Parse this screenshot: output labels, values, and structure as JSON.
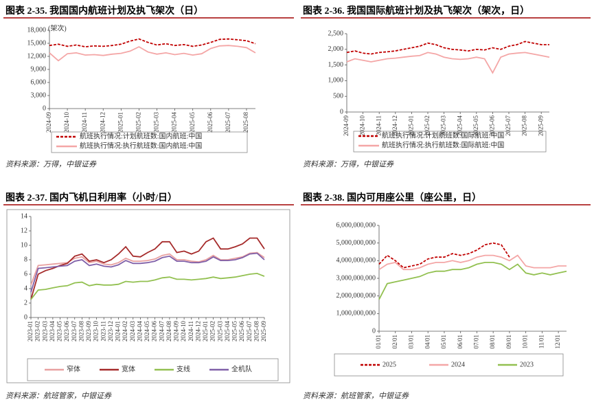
{
  "chart_data": [
    {
      "type": "line",
      "title": "图表 2-35. 我国国内航班计划及执飞架次（日）",
      "y_unit": "(架次)",
      "source": "资料来源：万得，中银证券",
      "categories": [
        "2024-09",
        null,
        "2024-10",
        null,
        "2024-11",
        null,
        "2024-12",
        null,
        "2025-01",
        null,
        "2025-02",
        null,
        "2025-03",
        null,
        "2025-04",
        null,
        "2025-05",
        null,
        "2025-06",
        null,
        "2025-07",
        null,
        "2025-08",
        null
      ],
      "ylim": [
        0,
        18000
      ],
      "yticks": [
        0,
        {
          "value": 3000,
          "label": "3,000"
        },
        {
          "value": 6000,
          "label": "6,000"
        },
        {
          "value": 9000,
          "label": "9,000"
        },
        {
          "value": 12000,
          "label": "12,000"
        },
        {
          "value": 15000,
          "label": "15,000"
        },
        {
          "value": 18000,
          "label": "18,000"
        }
      ],
      "grid": false,
      "series": [
        {
          "name": "航班执行情况:计划航班数:国内航班:中国",
          "color": "#c00000",
          "line_style": "dashed",
          "values": [
            14500,
            14800,
            14300,
            14600,
            14200,
            14400,
            14300,
            14500,
            14800,
            15500,
            16000,
            15200,
            14600,
            14900,
            14500,
            14700,
            14300,
            14600,
            15200,
            15900,
            16000,
            15800,
            15600,
            14900
          ]
        },
        {
          "name": "航班执行情况:执行航班数:国内航班:中国",
          "color": "#f4a6a6",
          "line_style": "solid",
          "values": [
            12800,
            11000,
            12600,
            12800,
            12300,
            12400,
            12200,
            12500,
            12700,
            13200,
            14200,
            13000,
            12500,
            12800,
            12400,
            12700,
            12300,
            12600,
            13800,
            14400,
            14500,
            14300,
            14000,
            12800
          ]
        }
      ]
    },
    {
      "type": "line",
      "title": "图表 2-36. 我国国际航班计划及执飞架次（架次，日）",
      "source": "资料来源：万得，中银证券",
      "categories": [
        "2024-09",
        null,
        "2024-10",
        null,
        "2024-11",
        null,
        "2024-12",
        null,
        "2025-01",
        null,
        "2025-02",
        null,
        "2025-03",
        null,
        "2025-04",
        null,
        "2025-05",
        null,
        "2025-06",
        null,
        "2025-07",
        null,
        "2025-08",
        null,
        "2025-09",
        null
      ],
      "ylim": [
        0,
        2500
      ],
      "yticks": [
        0,
        500,
        {
          "value": 1000,
          "label": "1,000"
        },
        {
          "value": 1500,
          "label": "1,500"
        },
        {
          "value": 2000,
          "label": "2,000"
        },
        {
          "value": 2500,
          "label": "2,500"
        }
      ],
      "grid": false,
      "series": [
        {
          "name": "航班执行情况:计划航班数:国际航班:中国",
          "color": "#c00000",
          "line_style": "dashed",
          "values": [
            1900,
            1950,
            1880,
            1850,
            1900,
            1920,
            1950,
            2000,
            2050,
            2100,
            2200,
            2150,
            2050,
            2000,
            1980,
            1950,
            2000,
            1980,
            2050,
            2000,
            2100,
            2150,
            2250,
            2200,
            2150,
            2150
          ]
        },
        {
          "name": "航班执行情况:执行航班数:国际航班:中国",
          "color": "#f4a6a6",
          "line_style": "solid",
          "values": [
            1600,
            1700,
            1650,
            1600,
            1650,
            1700,
            1720,
            1750,
            1780,
            1800,
            1900,
            1850,
            1750,
            1700,
            1680,
            1700,
            1750,
            1700,
            1250,
            1750,
            1850,
            1880,
            1900,
            1850,
            1800,
            1750
          ]
        }
      ]
    },
    {
      "type": "line",
      "title": "图表 2-37. 国内飞机日利用率（小时/日）",
      "source": "资料来源：航班管家，中银证券",
      "categories": [
        "2023-01",
        "2023-02",
        "2023-03",
        "2023-04",
        "2023-05",
        "2023-06",
        "2023-07",
        "2023-08",
        "2023-09",
        "2023-10",
        "2023-11",
        "2023-12",
        "2024-01",
        "2024-02",
        "2024-03",
        "2024-04",
        "2024-05",
        "2024-06",
        "2024-07",
        "2024-08",
        "2024-09",
        "2024-10",
        "2024-11",
        "2024-12",
        "2025-01",
        "2025-02",
        "2025-03",
        "2025-04",
        "2025-05",
        "2025-06",
        "2025-07",
        "2025-08",
        "2025-09"
      ],
      "ylim": [
        0,
        14
      ],
      "yticks": [
        0,
        2,
        4,
        6,
        8,
        10,
        12,
        14
      ],
      "grid": false,
      "series": [
        {
          "name": "窄体",
          "color": "#e8a0a0",
          "line_style": "solid",
          "values": [
            4.5,
            7.2,
            7.3,
            7.4,
            7.5,
            7.6,
            8.2,
            8.4,
            7.6,
            7.8,
            7.4,
            7.3,
            7.6,
            8.2,
            7.8,
            7.8,
            7.9,
            8.1,
            8.6,
            8.8,
            8.0,
            8.0,
            7.8,
            7.7,
            8.0,
            8.6,
            8.0,
            8.0,
            8.2,
            8.4,
            8.9,
            9.0,
            8.3
          ]
        },
        {
          "name": "宽体",
          "color": "#a52a2a",
          "line_style": "solid",
          "values": [
            2.5,
            6.0,
            6.5,
            6.8,
            7.2,
            7.5,
            8.5,
            8.8,
            7.8,
            8.0,
            7.6,
            8.0,
            8.8,
            9.8,
            8.5,
            8.4,
            9.0,
            9.5,
            10.5,
            10.5,
            9.0,
            9.2,
            8.8,
            9.2,
            10.5,
            11.0,
            9.5,
            9.5,
            9.8,
            10.2,
            11.0,
            11.0,
            9.5
          ]
        },
        {
          "name": "支线",
          "color": "#92c050",
          "line_style": "solid",
          "values": [
            2.5,
            3.8,
            3.9,
            4.1,
            4.3,
            4.4,
            4.8,
            4.9,
            4.4,
            4.6,
            4.5,
            4.5,
            4.6,
            5.0,
            4.9,
            5.0,
            5.0,
            5.2,
            5.5,
            5.6,
            5.3,
            5.3,
            5.2,
            5.3,
            5.4,
            5.6,
            5.4,
            5.5,
            5.6,
            5.8,
            6.0,
            6.1,
            5.7
          ]
        },
        {
          "name": "全机队",
          "color": "#7f5fa8",
          "line_style": "solid",
          "values": [
            3.5,
            6.8,
            6.9,
            7.0,
            7.1,
            7.2,
            7.8,
            8.0,
            7.2,
            7.4,
            7.1,
            7.0,
            7.3,
            7.9,
            7.5,
            7.5,
            7.6,
            7.8,
            8.3,
            8.5,
            7.8,
            7.8,
            7.6,
            7.6,
            7.8,
            8.4,
            7.9,
            7.9,
            8.0,
            8.3,
            8.8,
            8.9,
            8.0
          ]
        }
      ]
    },
    {
      "type": "line",
      "title": "图表 2-38. 国内可用座公里（座公里，日）",
      "source": "资料来源：航班管家，中银证券",
      "categories": [
        "01/01",
        null,
        "02/01",
        null,
        "03/01",
        null,
        "04/01",
        null,
        "05/01",
        null,
        "06/01",
        null,
        "07/01",
        null,
        "08/01",
        null,
        "09/01",
        null,
        "10/01",
        null,
        "11/01",
        null,
        "12/01",
        null
      ],
      "ylim": [
        0,
        6000000000
      ],
      "yticks": [
        0,
        {
          "value": 1000000000,
          "label": "1,000,000,000"
        },
        {
          "value": 2000000000,
          "label": "2,000,000,000"
        },
        {
          "value": 3000000000,
          "label": "3,000,000,000"
        },
        {
          "value": 4000000000,
          "label": "4,000,000,000"
        },
        {
          "value": 5000000000,
          "label": "5,000,000,000"
        },
        {
          "value": 6000000000,
          "label": "6,000,000,000"
        }
      ],
      "grid": false,
      "series": [
        {
          "name": "2025",
          "color": "#c00000",
          "line_style": "dashed",
          "values": [
            3800000000,
            4300000000,
            4000000000,
            3600000000,
            3700000000,
            3800000000,
            4100000000,
            4200000000,
            4200000000,
            4400000000,
            4300000000,
            4400000000,
            4600000000,
            4900000000,
            5000000000,
            4900000000,
            4200000000,
            null,
            null,
            null,
            null,
            null,
            null,
            null
          ]
        },
        {
          "name": "2024",
          "color": "#f4a6a6",
          "line_style": "solid",
          "values": [
            3500000000,
            3800000000,
            3900000000,
            3500000000,
            3500000000,
            3600000000,
            3800000000,
            3900000000,
            3900000000,
            4000000000,
            3900000000,
            4000000000,
            4200000000,
            4300000000,
            4300000000,
            4200000000,
            4000000000,
            4300000000,
            3700000000,
            3600000000,
            3600000000,
            3600000000,
            3700000000,
            3700000000
          ]
        },
        {
          "name": "2023",
          "color": "#92c050",
          "line_style": "solid",
          "values": [
            1800000000,
            2700000000,
            2800000000,
            2900000000,
            3000000000,
            3100000000,
            3300000000,
            3400000000,
            3400000000,
            3500000000,
            3500000000,
            3600000000,
            3800000000,
            3900000000,
            3900000000,
            3800000000,
            3500000000,
            3800000000,
            3300000000,
            3200000000,
            3300000000,
            3200000000,
            3300000000,
            3400000000
          ]
        }
      ]
    }
  ]
}
